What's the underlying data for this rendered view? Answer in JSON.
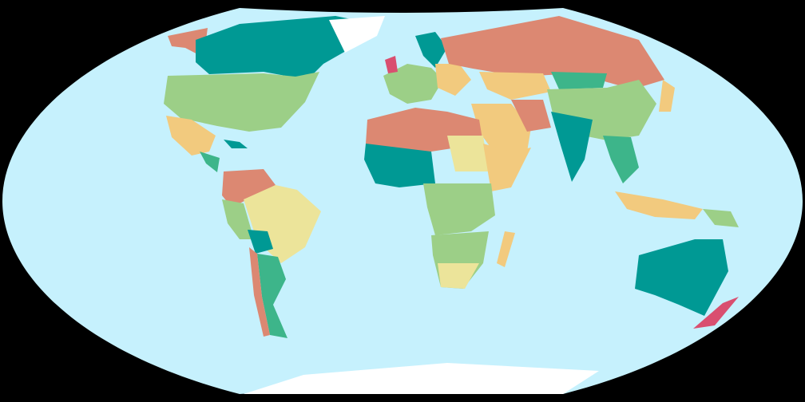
{
  "map": {
    "projection": "winkel-tripel",
    "colors": {
      "background": "#000000",
      "ocean": "#c6f1fd",
      "teal": "#009994",
      "salmon": "#dc8872",
      "green": "#9ccf87",
      "yellow": "#f2ca7e",
      "pale_yellow": "#ece49a",
      "mint": "#3db58a",
      "pink": "#d94f70",
      "ice": "#ffffff"
    }
  }
}
